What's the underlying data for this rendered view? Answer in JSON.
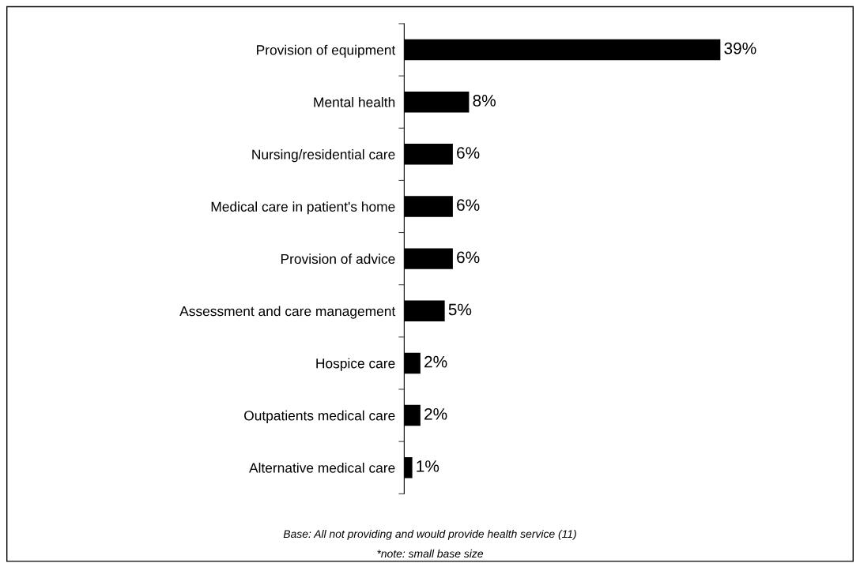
{
  "chart_data": {
    "type": "bar",
    "orientation": "horizontal",
    "categories": [
      "Provision of equipment",
      "Mental health",
      "Nursing/residential care",
      "Medical care in patient's home",
      "Provision of advice",
      "Assessment and care management",
      "Hospice care",
      "Outpatients medical care",
      "Alternative medical care"
    ],
    "values": [
      39,
      8,
      6,
      6,
      6,
      5,
      2,
      2,
      1
    ],
    "value_labels": [
      "39%",
      "8%",
      "6%",
      "6%",
      "6%",
      "5%",
      "2%",
      "2%",
      "1%"
    ],
    "color": "#000000",
    "grid": false,
    "legend": false,
    "annotations": [
      "Base: All not providing and would provide health service (11)",
      "*note: small base size"
    ]
  }
}
